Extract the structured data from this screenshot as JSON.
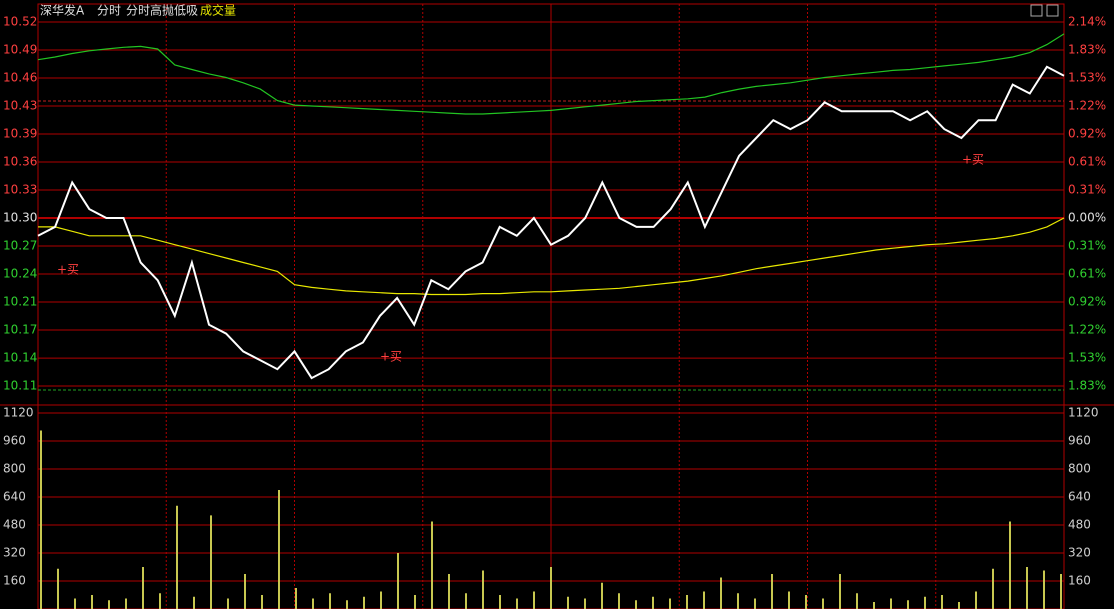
{
  "header": {
    "name": "深华发A",
    "tabs": [
      "分时",
      "分时高抛低吸",
      "成交量"
    ]
  },
  "chart_data": [
    {
      "type": "line",
      "ylim": [
        10.1111,
        10.5204
      ],
      "yticks": [
        {
          "value": 10.5204,
          "label": "10.52"
        },
        {
          "value": 10.4889,
          "label": "10.49"
        },
        {
          "value": 10.4575,
          "label": "10.46"
        },
        {
          "value": 10.426,
          "label": "10.43"
        },
        {
          "value": 10.3945,
          "label": "10.39"
        },
        {
          "value": 10.363,
          "label": "10.36"
        },
        {
          "value": 10.3315,
          "label": "10.33"
        },
        {
          "value": 10.3,
          "label": "10.30"
        },
        {
          "value": 10.2685,
          "label": "10.27"
        },
        {
          "value": 10.237,
          "label": "10.24"
        },
        {
          "value": 10.2055,
          "label": "10.21"
        },
        {
          "value": 10.174,
          "label": "10.17"
        },
        {
          "value": 10.1425,
          "label": "10.14"
        },
        {
          "value": 10.1111,
          "label": "10.11"
        }
      ],
      "y2lim": [
        -1.834,
        2.14
      ],
      "y2ticks": [
        {
          "value": 2.14,
          "label": "2.14%"
        },
        {
          "value": 1.834,
          "label": "1.83%"
        },
        {
          "value": 1.529,
          "label": "1.53%"
        },
        {
          "value": 1.223,
          "label": "1.22%"
        },
        {
          "value": 0.917,
          "label": "0.92%"
        },
        {
          "value": 0.611,
          "label": "0.61%"
        },
        {
          "value": 0.306,
          "label": "0.31%"
        },
        {
          "value": 0,
          "label": "0.00%"
        },
        {
          "value": -0.306,
          "label": "0.31%"
        },
        {
          "value": -0.611,
          "label": "0.61%"
        },
        {
          "value": -0.917,
          "label": "0.92%"
        },
        {
          "value": -1.223,
          "label": "1.22%"
        },
        {
          "value": -1.529,
          "label": "1.53%"
        },
        {
          "value": -1.834,
          "label": "1.83%"
        }
      ],
      "grid": true,
      "series": [
        {
          "color": "#ffffff",
          "values": [
            10.28,
            10.29,
            10.34,
            10.31,
            10.3,
            10.3,
            10.25,
            10.23,
            10.19,
            10.25,
            10.18,
            10.17,
            10.15,
            10.14,
            10.13,
            10.15,
            10.12,
            10.13,
            10.15,
            10.16,
            10.19,
            10.21,
            10.18,
            10.23,
            10.22,
            10.24,
            10.25,
            10.29,
            10.28,
            10.3,
            10.27,
            10.28,
            10.3,
            10.34,
            10.3,
            10.29,
            10.29,
            10.31,
            10.34,
            10.29,
            10.33,
            10.37,
            10.39,
            10.41,
            10.4,
            10.41,
            10.43,
            10.42,
            10.42,
            10.42,
            10.42,
            10.41,
            10.42,
            10.4,
            10.39,
            10.41,
            10.41,
            10.45,
            10.44,
            10.47,
            10.46
          ]
        },
        {
          "color": "#e8e800",
          "values": [
            10.29,
            10.29,
            10.285,
            10.28,
            10.28,
            10.28,
            10.28,
            10.275,
            10.27,
            10.265,
            10.26,
            10.255,
            10.25,
            10.245,
            10.24,
            10.225,
            10.222,
            10.22,
            10.218,
            10.217,
            10.216,
            10.215,
            10.215,
            10.214,
            10.214,
            10.214,
            10.215,
            10.215,
            10.216,
            10.217,
            10.217,
            10.218,
            10.219,
            10.22,
            10.221,
            10.223,
            10.225,
            10.227,
            10.229,
            10.232,
            10.235,
            10.239,
            10.243,
            10.246,
            10.249,
            10.252,
            10.255,
            10.258,
            10.261,
            10.264,
            10.266,
            10.268,
            10.27,
            10.271,
            10.273,
            10.275,
            10.277,
            10.28,
            10.284,
            10.29,
            10.3
          ]
        },
        {
          "color": "#22c422",
          "values": [
            10.478,
            10.481,
            10.485,
            10.488,
            10.49,
            10.492,
            10.493,
            10.49,
            10.472,
            10.467,
            10.462,
            10.458,
            10.452,
            10.445,
            10.432,
            10.427,
            10.426,
            10.425,
            10.424,
            10.423,
            10.422,
            10.421,
            10.42,
            10.419,
            10.418,
            10.417,
            10.417,
            10.418,
            10.419,
            10.42,
            10.421,
            10.423,
            10.425,
            10.427,
            10.429,
            10.431,
            10.432,
            10.433,
            10.434,
            10.436,
            10.441,
            10.445,
            10.448,
            10.45,
            10.452,
            10.455,
            10.458,
            10.46,
            10.462,
            10.464,
            10.466,
            10.467,
            10.469,
            10.471,
            10.473,
            10.475,
            10.478,
            10.481,
            10.486,
            10.495,
            10.507
          ]
        }
      ],
      "annotations": [
        "+买",
        "+买",
        "+买"
      ]
    },
    {
      "type": "bar",
      "ylim": [
        0,
        1120
      ],
      "yticks": [
        160,
        320,
        480,
        640,
        800,
        960,
        1120
      ],
      "grid": true,
      "color": "#c8c850",
      "values": [
        1020,
        230,
        60,
        80,
        50,
        60,
        240,
        90,
        590,
        70,
        535,
        60,
        200,
        80,
        680,
        120,
        60,
        90,
        50,
        70,
        100,
        320,
        80,
        500,
        200,
        90,
        220,
        80,
        60,
        100,
        240,
        70,
        60,
        150,
        90,
        50,
        70,
        60,
        80,
        100,
        180,
        90,
        60,
        200,
        100,
        80,
        60,
        200,
        90,
        40,
        60,
        50,
        70,
        80,
        40,
        100,
        230,
        500,
        240,
        220,
        200
      ]
    }
  ]
}
